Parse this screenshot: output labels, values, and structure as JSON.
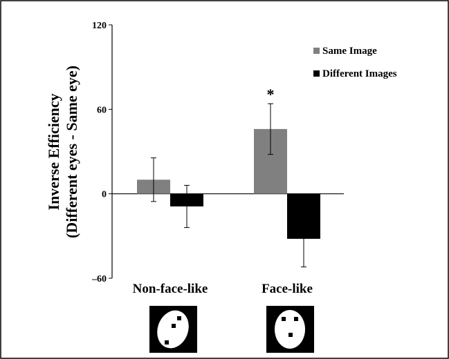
{
  "chart_data": {
    "type": "bar",
    "ylabel": [
      "Inverse Efficiency",
      "(Different eyes - Same eye)"
    ],
    "categories": [
      "Non-face-like",
      "Face-like"
    ],
    "series": [
      {
        "name": "Same Image",
        "color": "#808080",
        "values": [
          10,
          46
        ],
        "errors": [
          15.5,
          18
        ]
      },
      {
        "name": "Different Images",
        "color": "#000000",
        "values": [
          -9,
          -32
        ],
        "errors": [
          15,
          20
        ]
      }
    ],
    "ylim": [
      -60,
      120
    ],
    "yticks": [
      {
        "value": -60,
        "label": "–60"
      },
      0,
      60,
      120
    ],
    "annotations": [
      {
        "text": "*",
        "category": 1,
        "series": 0
      }
    ],
    "legend": "upper right"
  }
}
